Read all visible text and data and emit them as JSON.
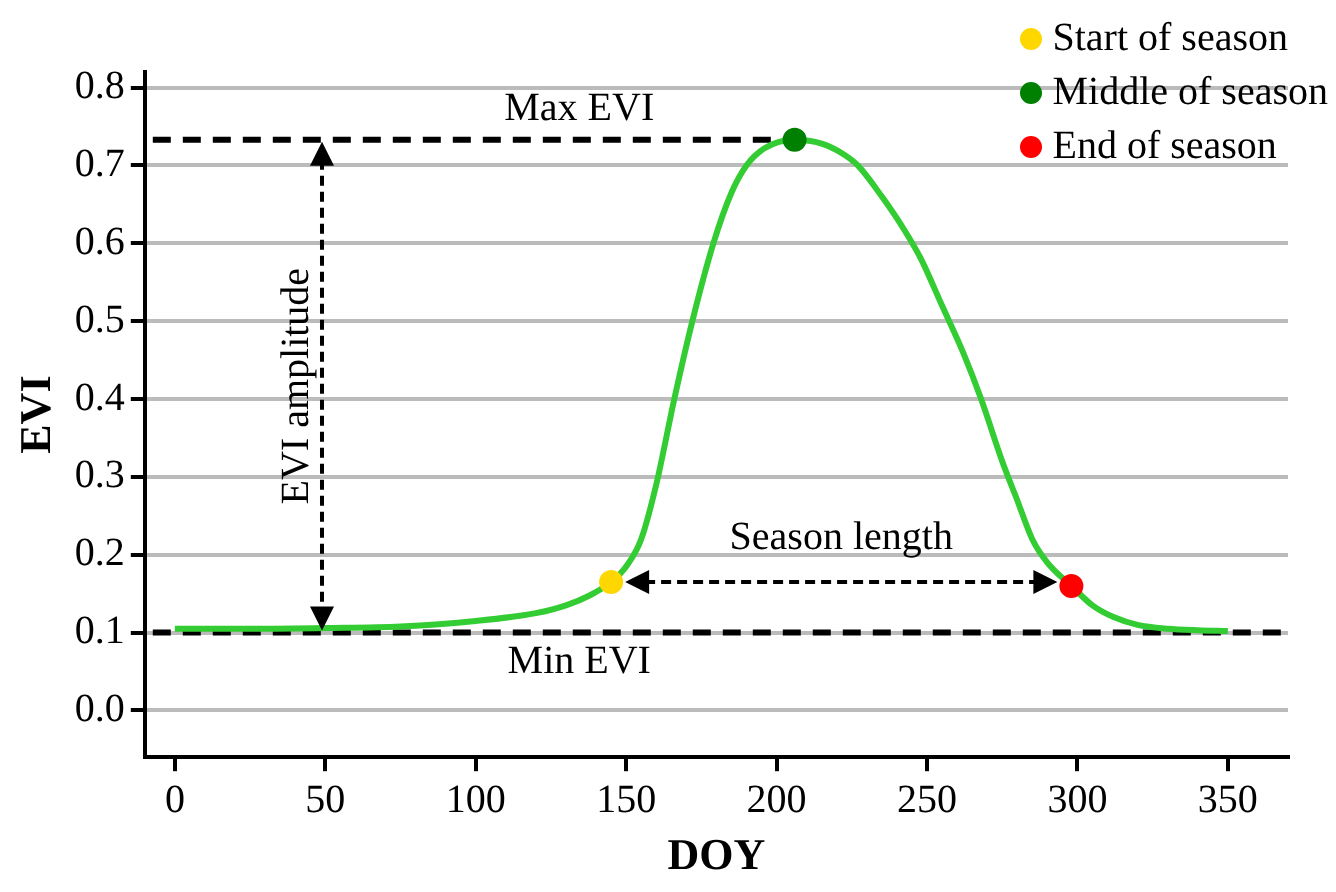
{
  "chart_data": {
    "type": "line",
    "xlabel": "DOY",
    "ylabel": "EVI",
    "xlim": [
      -10,
      370
    ],
    "xticks": [
      0,
      50,
      100,
      150,
      200,
      250,
      300,
      350
    ],
    "ylim": [
      -0.06,
      0.82
    ],
    "yticks": [
      {
        "value": 0,
        "label": "0.0"
      },
      0.1,
      0.2,
      0.3,
      0.4,
      0.5,
      0.6,
      0.7,
      0.8
    ],
    "grid": "y",
    "legend": "top right",
    "line_style": "solid",
    "series": [
      {
        "type": "line",
        "color": "#33cc33",
        "marker": "none",
        "x": [
          0,
          25,
          50,
          75,
          100,
          120,
          130,
          138,
          145,
          150,
          155,
          160,
          166,
          172,
          179,
          185,
          190,
          196,
          206,
          215,
          222,
          227,
          235,
          242,
          248,
          255,
          262,
          268,
          275,
          280,
          285,
          290,
          298,
          305,
          312,
          320,
          330,
          340,
          350
        ],
        "values": [
          0.105,
          0.105,
          0.106,
          0.108,
          0.115,
          0.125,
          0.135,
          0.148,
          0.165,
          0.185,
          0.22,
          0.29,
          0.4,
          0.5,
          0.6,
          0.665,
          0.7,
          0.722,
          0.733,
          0.728,
          0.715,
          0.7,
          0.66,
          0.62,
          0.58,
          0.52,
          0.46,
          0.4,
          0.32,
          0.27,
          0.22,
          0.19,
          0.16,
          0.135,
          0.12,
          0.11,
          0.105,
          0.103,
          0.102
        ]
      },
      {
        "type": "scatter",
        "name": "Start of season",
        "color": "#ffd700",
        "marker": "circle",
        "x": [
          145
        ],
        "values": [
          0.165
        ]
      },
      {
        "type": "scatter",
        "name": "Middle of season",
        "color": "#008000",
        "marker": "circle",
        "x": [
          206
        ],
        "values": [
          0.733
        ]
      },
      {
        "type": "scatter",
        "name": "End of season",
        "color": "#ff0000",
        "marker": "circle",
        "x": [
          298
        ],
        "values": [
          0.16
        ]
      }
    ],
    "ref_lines": [
      {
        "axis": "y",
        "value": 0.733,
        "label": "Max EVI",
        "color": "#000000",
        "line_style": "dashed"
      },
      {
        "axis": "y",
        "value": 0.1,
        "label": "Min EVI",
        "color": "#000000",
        "line_style": "dashed"
      }
    ],
    "annotations": [
      "EVI amplitude",
      "Season length"
    ]
  }
}
